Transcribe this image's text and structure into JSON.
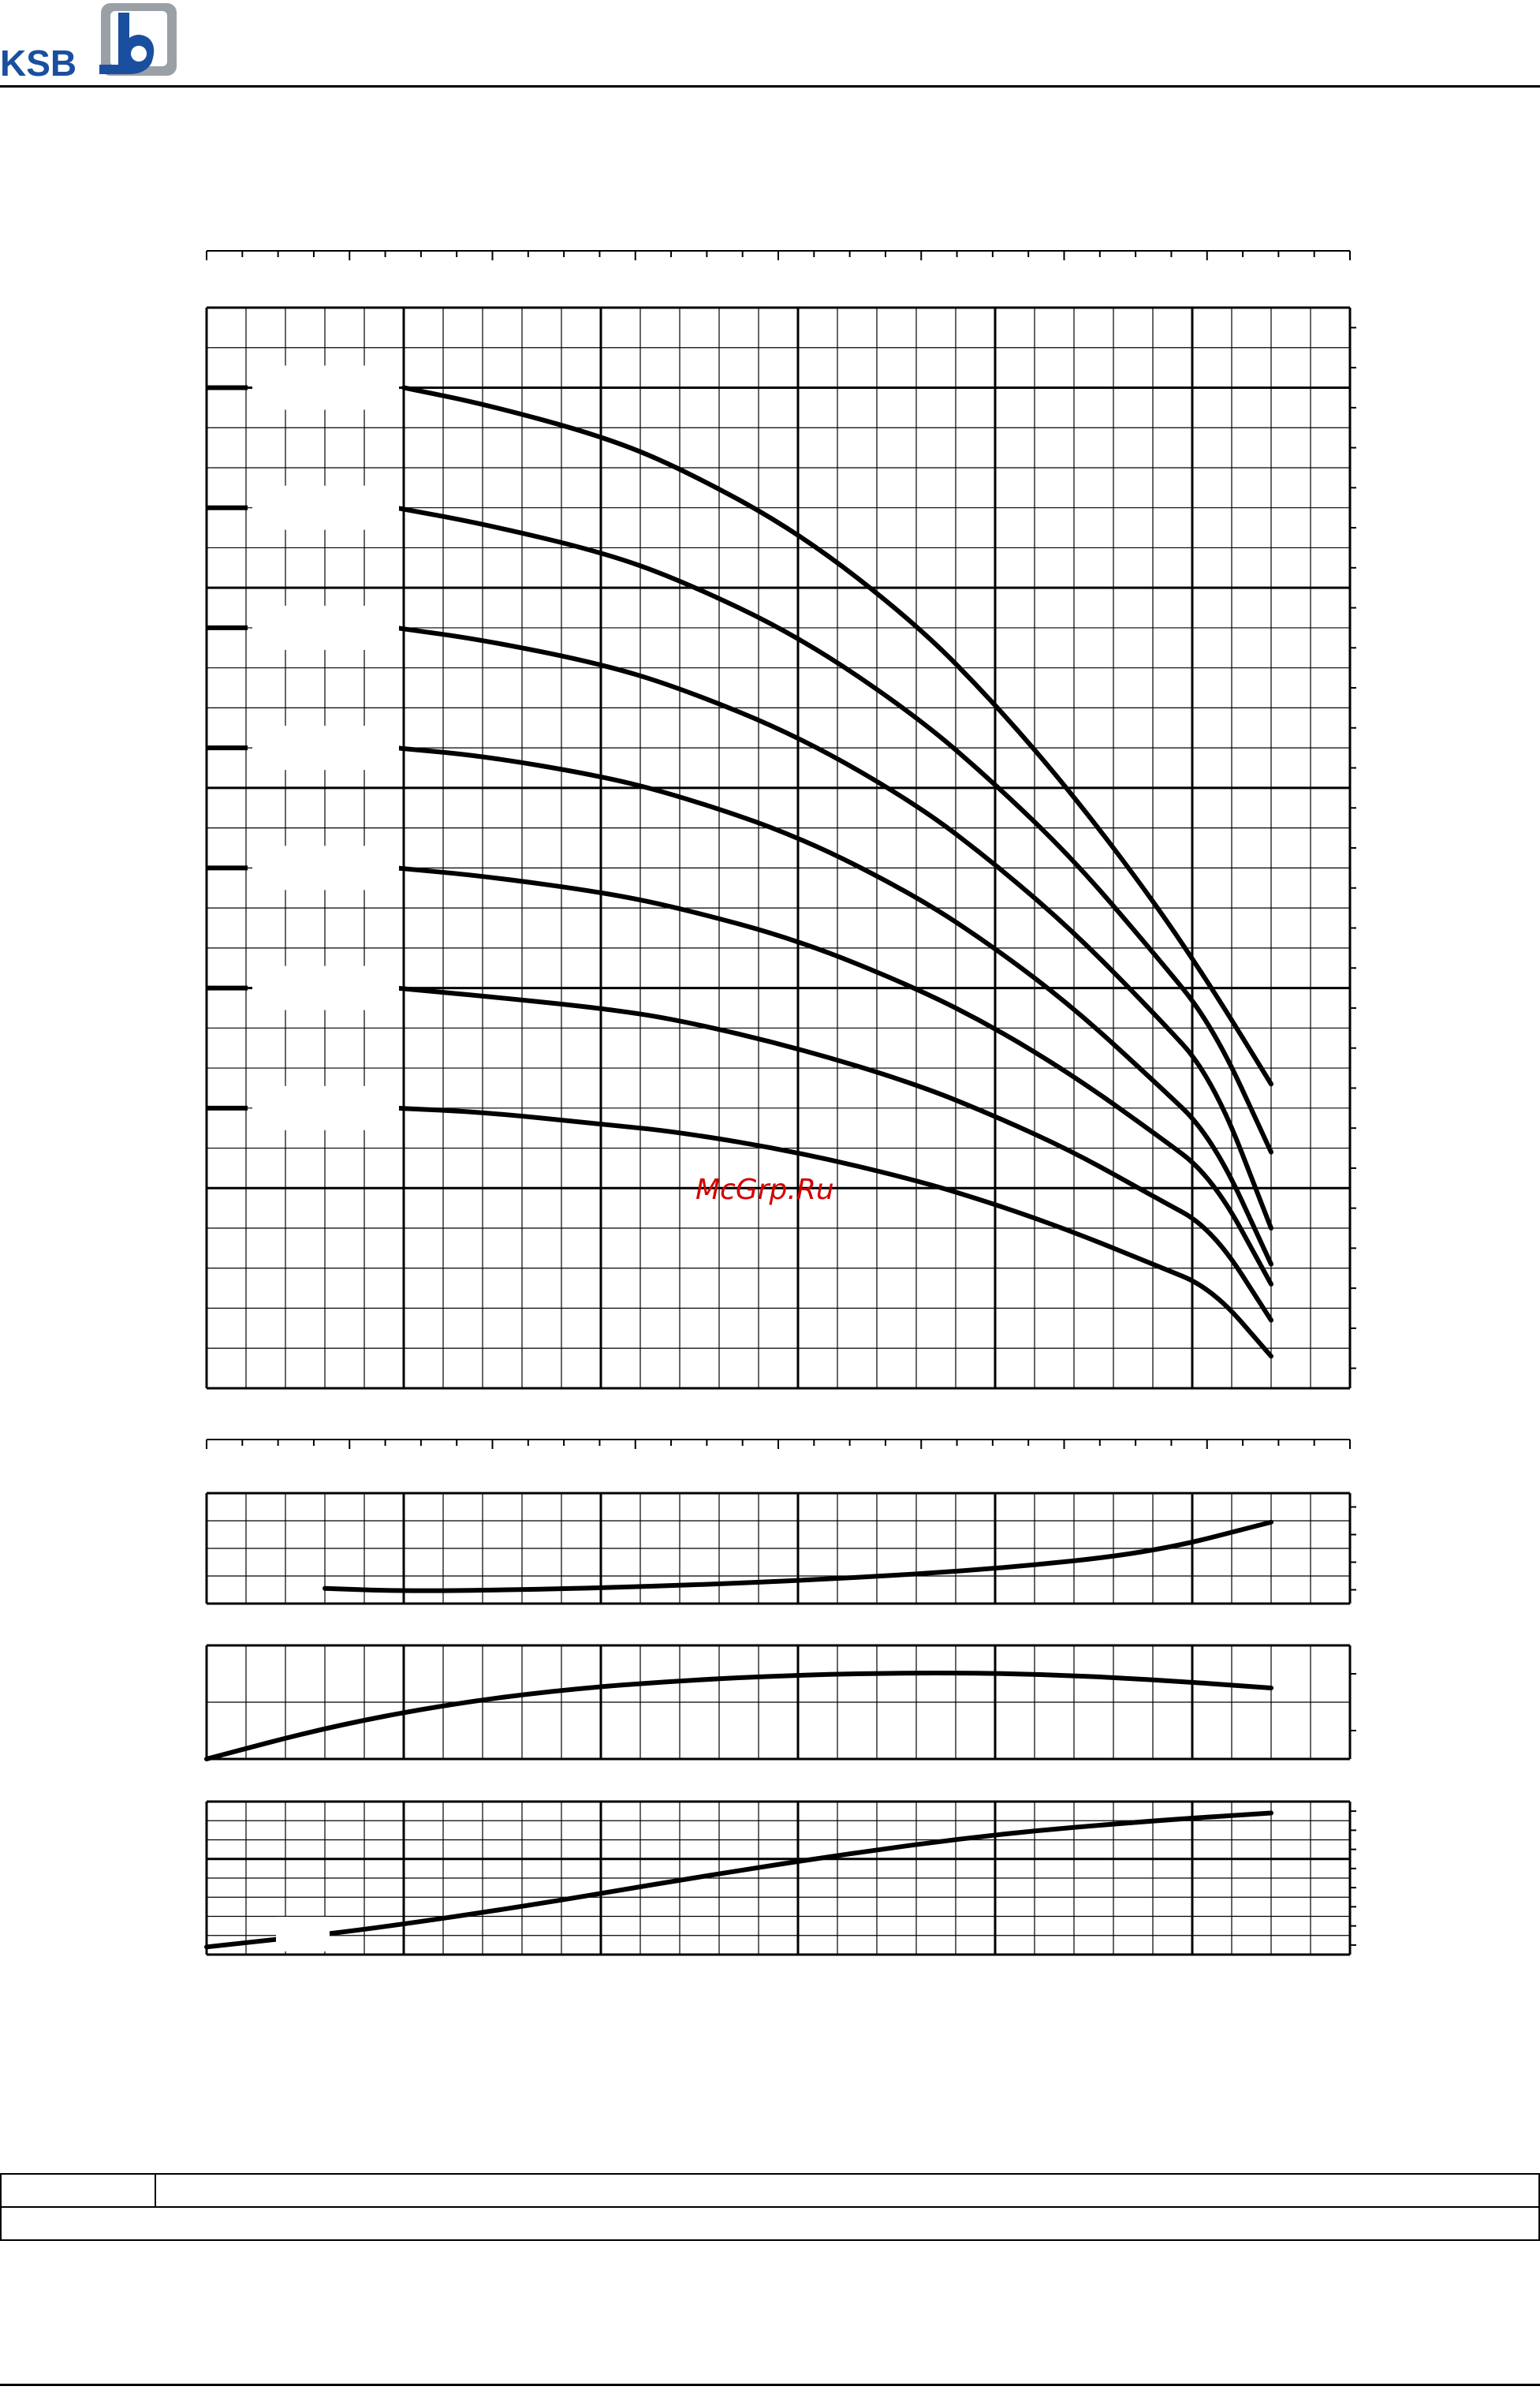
{
  "header": {
    "brand": "KSB",
    "brand_color": "#1a4fa0",
    "logo_accent_color": "#9aa0a6"
  },
  "watermark": {
    "text": "McGrp.Ru",
    "color": "#d40000"
  },
  "info_table": {
    "row1_label": "",
    "row1_value": "",
    "row2_value": ""
  },
  "chart_data": [
    {
      "type": "line",
      "panel": "head",
      "title": "",
      "xlabel": "",
      "ylabel": "",
      "grid": true,
      "xlim": [
        0,
        29
      ],
      "ylim": [
        0,
        27
      ],
      "series": [
        {
          "x": [
            5,
            7,
            10,
            12,
            15,
            18,
            20,
            22,
            24,
            25.5,
            27
          ],
          "y": [
            25.0,
            24.6,
            23.8,
            23.0,
            21.4,
            19.1,
            17.1,
            14.8,
            12.2,
            10.0,
            7.6
          ]
        },
        {
          "x": [
            4.8,
            7,
            10,
            12,
            15,
            18,
            20,
            22,
            24,
            25.5,
            27
          ],
          "y": [
            22.0,
            21.6,
            20.9,
            20.2,
            18.8,
            16.8,
            15.1,
            13.2,
            10.9,
            9.1,
            5.9
          ]
        },
        {
          "x": [
            4.8,
            7,
            10,
            12,
            15,
            18,
            20,
            22,
            24,
            25.5,
            27
          ],
          "y": [
            19.0,
            18.7,
            18.1,
            17.5,
            16.3,
            14.6,
            13.1,
            11.4,
            9.4,
            7.8,
            4.0
          ]
        },
        {
          "x": [
            4.8,
            7,
            10,
            12,
            15,
            18,
            20,
            22,
            24,
            25.5,
            27
          ],
          "y": [
            16.0,
            15.8,
            15.3,
            14.8,
            13.8,
            12.3,
            11.0,
            9.5,
            7.7,
            6.3,
            3.1
          ]
        },
        {
          "x": [
            4.8,
            7,
            10,
            12,
            15,
            18,
            20,
            22,
            24,
            25.5,
            27
          ],
          "y": [
            13.0,
            12.8,
            12.4,
            12.0,
            11.2,
            10.0,
            9.0,
            7.8,
            6.4,
            5.3,
            2.6
          ]
        },
        {
          "x": [
            4.8,
            7,
            10,
            12,
            15,
            18,
            20,
            22,
            24,
            25.5,
            27
          ],
          "y": [
            10.0,
            9.8,
            9.5,
            9.2,
            8.5,
            7.6,
            6.8,
            5.9,
            4.8,
            4.0,
            1.7
          ]
        },
        {
          "x": [
            4.8,
            7,
            10,
            12,
            15,
            18,
            20,
            22,
            24,
            25.5,
            27
          ],
          "y": [
            7.0,
            6.9,
            6.6,
            6.4,
            5.9,
            5.2,
            4.6,
            3.9,
            3.1,
            2.5,
            0.8
          ]
        }
      ]
    },
    {
      "type": "line",
      "panel": "upper-small",
      "title": "",
      "xlabel": "",
      "ylabel": "",
      "grid": true,
      "xlim": [
        0,
        29
      ],
      "ylim": [
        0,
        4
      ],
      "series": [
        {
          "x": [
            3,
            5,
            8,
            12,
            16,
            20,
            24,
            27
          ],
          "y": [
            0.55,
            0.45,
            0.5,
            0.65,
            0.9,
            1.25,
            1.85,
            2.95
          ]
        }
      ]
    },
    {
      "type": "line",
      "panel": "middle-small",
      "title": "",
      "xlabel": "",
      "ylabel": "",
      "grid": true,
      "xlim": [
        0,
        29
      ],
      "ylim": [
        0,
        2
      ],
      "series": [
        {
          "x": [
            0,
            3,
            6,
            9,
            12,
            15,
            18,
            21,
            24,
            27
          ],
          "y": [
            0.0,
            0.55,
            0.95,
            1.22,
            1.38,
            1.48,
            1.52,
            1.5,
            1.4,
            1.25
          ]
        }
      ]
    },
    {
      "type": "line",
      "panel": "lower-small",
      "title": "",
      "xlabel": "",
      "ylabel": "",
      "grid": true,
      "xlim": [
        0,
        29
      ],
      "ylim": [
        0,
        8
      ],
      "series": [
        {
          "x": [
            0,
            1.8,
            4,
            8,
            12,
            16,
            20,
            24,
            27
          ],
          "y": [
            0.4,
            0.8,
            1.3,
            2.5,
            3.9,
            5.2,
            6.3,
            7.0,
            7.4
          ]
        }
      ]
    }
  ]
}
